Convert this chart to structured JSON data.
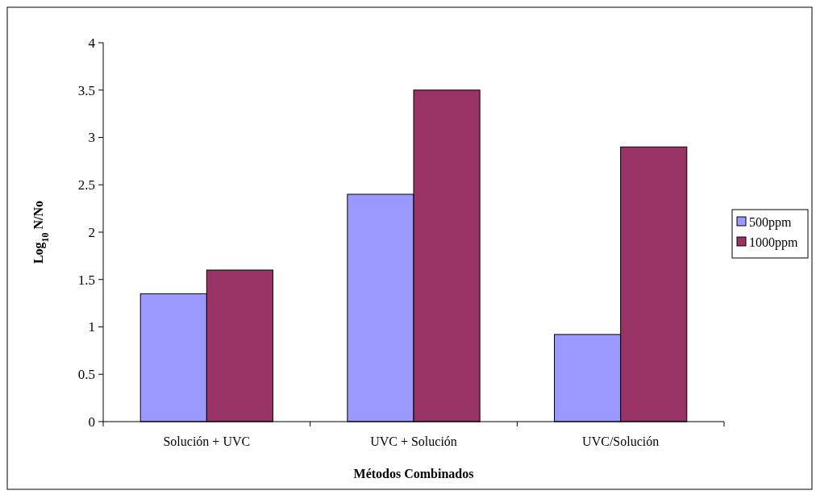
{
  "chart_data": {
    "type": "bar",
    "xlabel": "Métodos Combinados",
    "ylabel": "Log$_{10}$ N/No",
    "categories": [
      "Solución + UVC",
      "UVC + Solución",
      "UVC/Solución"
    ],
    "series": [
      {
        "name": "500ppm",
        "color": "#9999ff",
        "values": [
          1.35,
          2.4,
          0.92
        ]
      },
      {
        "name": "1000ppm",
        "color": "#993366",
        "values": [
          1.6,
          3.5,
          2.9
        ]
      }
    ],
    "ylim": [
      0,
      4
    ],
    "yticks": [
      0,
      0.5,
      1,
      1.5,
      2,
      2.5,
      3,
      3.5,
      4
    ],
    "grid": false,
    "legend": "right"
  }
}
